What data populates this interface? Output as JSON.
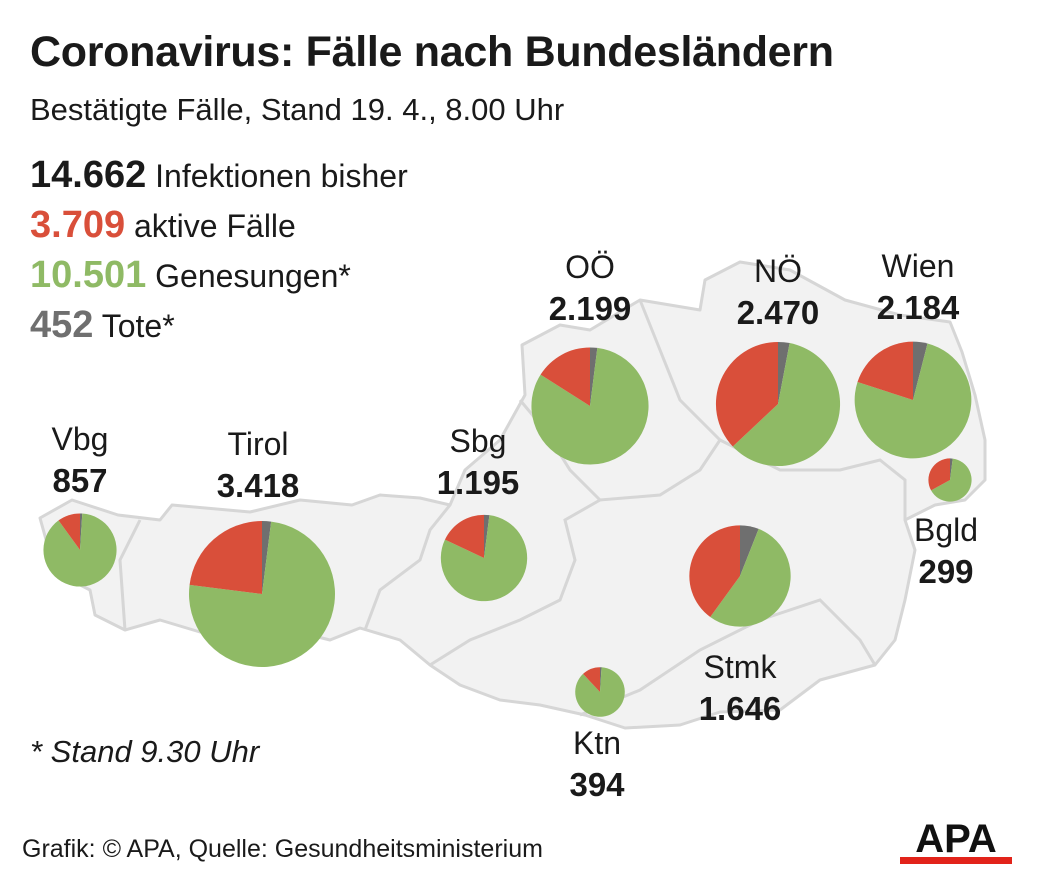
{
  "title": "Coronavirus: Fälle nach Bundesländern",
  "subtitle": "Bestätigte Fälle, Stand 19. 4., 8.00 Uhr",
  "summary": {
    "total": {
      "value": "14.662",
      "label": "Infektionen bisher",
      "color": "#1a1a1a"
    },
    "active": {
      "value": "3.709",
      "label": "aktive Fälle",
      "color": "#d94f3a"
    },
    "recovered": {
      "value": "10.501",
      "label": "Genesungen*",
      "color": "#8fba65"
    },
    "deaths": {
      "value": "452",
      "label": "Tote*",
      "color": "#6f6f6f"
    }
  },
  "footnote": "* Stand 9.30 Uhr",
  "source": "Grafik: © APA, Quelle: Gesundheitsministerium",
  "logo_text": "APA",
  "colors": {
    "active": "#d94f3a",
    "recovered": "#8fba65",
    "deaths": "#6f6f6f",
    "map_fill": "#f2f2f2",
    "map_stroke": "#d6d6d6"
  },
  "chart_data": {
    "type": "pie",
    "title": "Coronavirus: Fälle nach Bundesländern",
    "series_names": [
      "aktive Fälle",
      "Genesungen",
      "Tote"
    ],
    "regions": [
      {
        "name": "Vbg",
        "cases": 857,
        "cases_label": "857",
        "active_share": 0.1,
        "deaths_share": 0.01
      },
      {
        "name": "Tirol",
        "cases": 3418,
        "cases_label": "3.418",
        "active_share": 0.23,
        "deaths_share": 0.02
      },
      {
        "name": "Sbg",
        "cases": 1195,
        "cases_label": "1.195",
        "active_share": 0.18,
        "deaths_share": 0.02
      },
      {
        "name": "OÖ",
        "cases": 2199,
        "cases_label": "2.199",
        "active_share": 0.16,
        "deaths_share": 0.02
      },
      {
        "name": "NÖ",
        "cases": 2470,
        "cases_label": "2.470",
        "active_share": 0.37,
        "deaths_share": 0.03
      },
      {
        "name": "Wien",
        "cases": 2184,
        "cases_label": "2.184",
        "active_share": 0.2,
        "deaths_share": 0.04
      },
      {
        "name": "Bgld",
        "cases": 299,
        "cases_label": "299",
        "active_share": 0.33,
        "deaths_share": 0.02
      },
      {
        "name": "Stmk",
        "cases": 1646,
        "cases_label": "1.646",
        "active_share": 0.4,
        "deaths_share": 0.06
      },
      {
        "name": "Ktn",
        "cases": 394,
        "cases_label": "394",
        "active_share": 0.12,
        "deaths_share": 0.01
      }
    ]
  }
}
